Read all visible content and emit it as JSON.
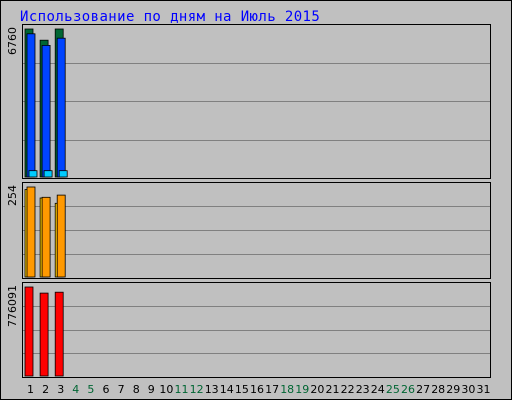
{
  "chart_data": {
    "type": "bar",
    "title": "Использование по дням на Июль 2015",
    "categories": [
      "1",
      "2",
      "3",
      "4",
      "5",
      "6",
      "7",
      "8",
      "9",
      "10",
      "11",
      "12",
      "13",
      "14",
      "15",
      "16",
      "17",
      "18",
      "19",
      "20",
      "21",
      "22",
      "23",
      "24",
      "25",
      "26",
      "27",
      "28",
      "29",
      "30",
      "31"
    ],
    "weekend_days": [
      4,
      5,
      11,
      12,
      18,
      19,
      25,
      26
    ],
    "colors": {
      "title": "#0000ff",
      "weekday_tick": "#000000",
      "weekend_tick": "#006633",
      "grid": "#808080",
      "background": "#c0c0c0"
    },
    "panels": [
      {
        "max_label": "6760",
        "series": [
          {
            "color": "#006633",
            "values": [
              6760,
              6250,
              6760
            ]
          },
          {
            "color": "#0044ff",
            "values": [
              6540,
              6010,
              6340
            ]
          },
          {
            "color": "#00ccff",
            "values": [
              290,
              290,
              290
            ]
          }
        ]
      },
      {
        "max_label": "254",
        "series": [
          {
            "color": "#ffcc00",
            "values": [
              247,
              223,
              208
            ]
          },
          {
            "color": "#ff9900",
            "values": [
              254,
              225,
              231
            ]
          }
        ]
      },
      {
        "max_label": "776091",
        "series": [
          {
            "color": "#ff0000",
            "values": [
              776091,
              723000,
              731000
            ]
          }
        ]
      }
    ]
  }
}
